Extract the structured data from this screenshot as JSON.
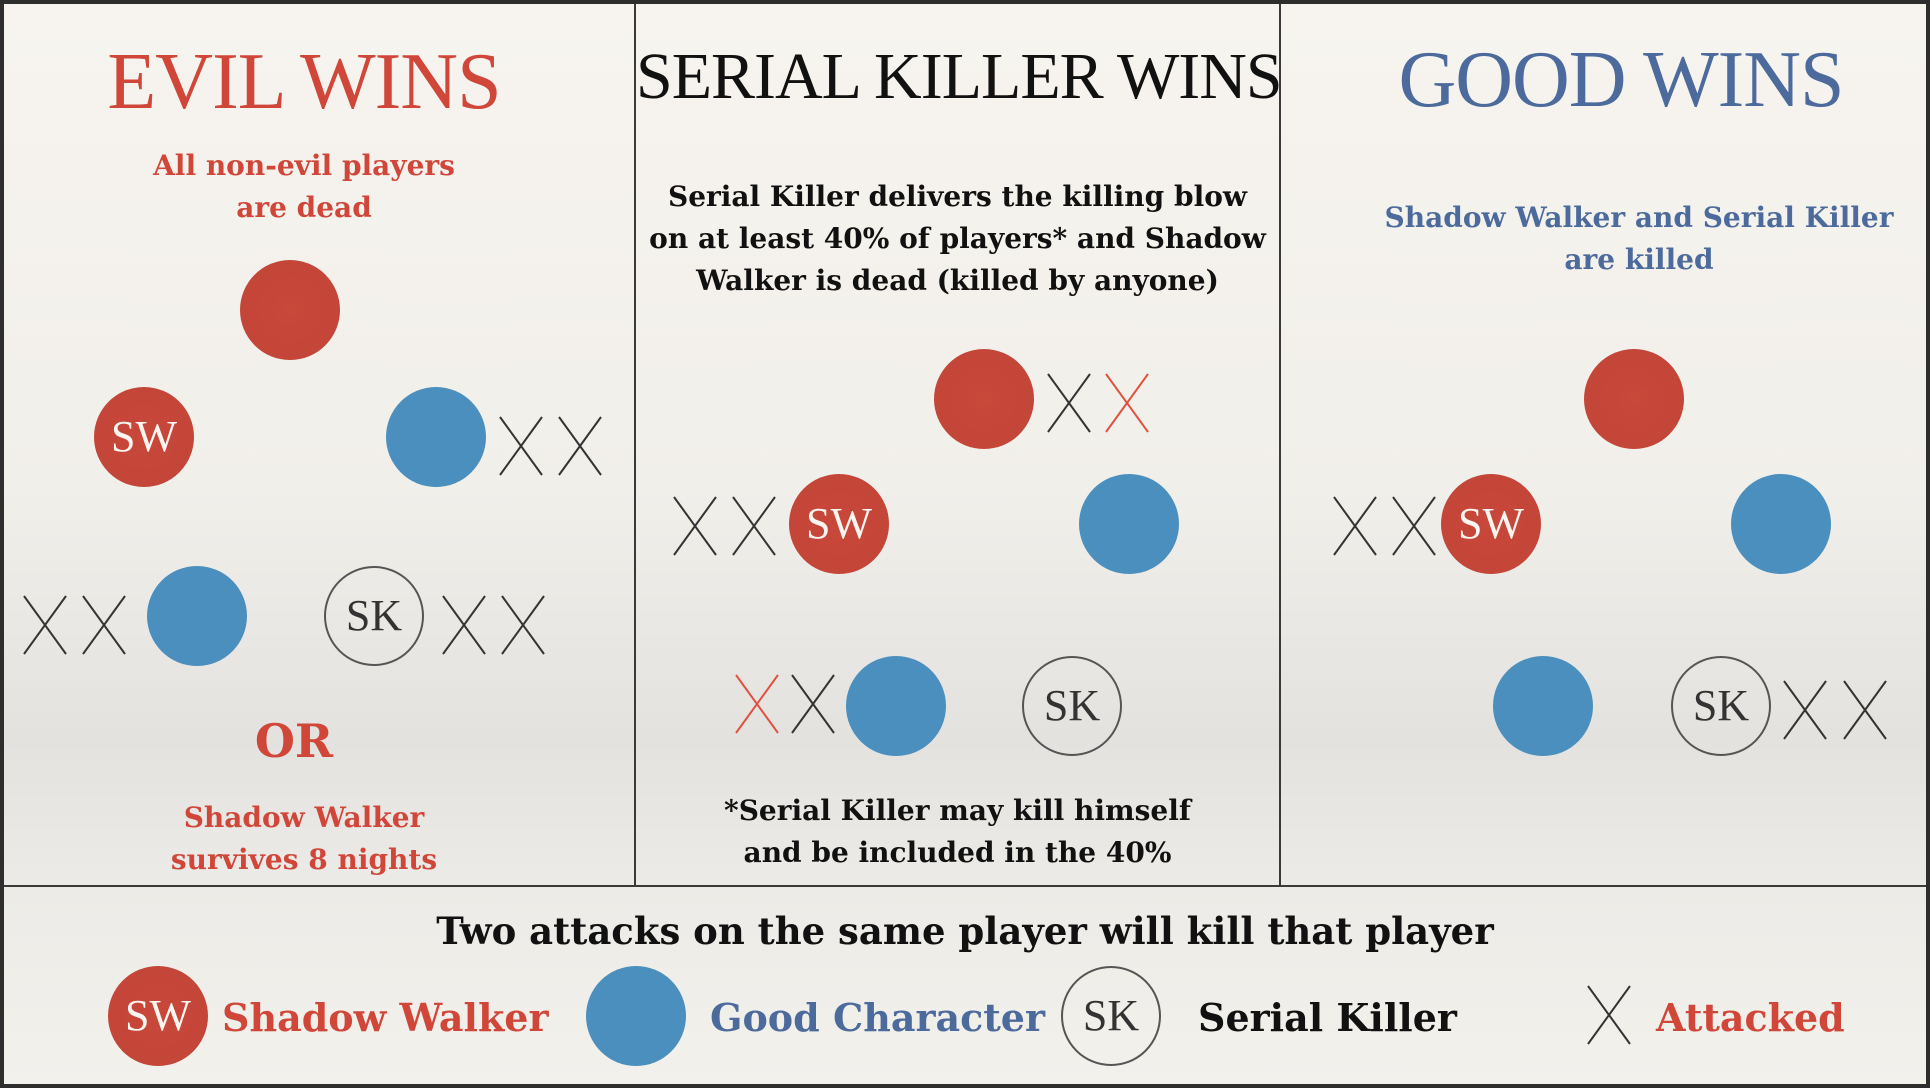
{
  "panels": {
    "evil": {
      "title": "EVIL WINS",
      "desc_line1": "All non-evil players",
      "desc_line2": "are dead",
      "or_label": "OR",
      "alt_line1": "Shadow Walker",
      "alt_line2": "survives 8 nights",
      "color": "#d0473a"
    },
    "sk": {
      "title": "SERIAL KILLER WINS",
      "desc_line1": "Serial Killer delivers the killing blow",
      "desc_line2": "on at least 40% of players* and Shadow",
      "desc_line3": "Walker is dead (killed by anyone)",
      "note_line1": "*Serial Killer may kill himself",
      "note_line2": "and be included in the 40%",
      "color": "#111111"
    },
    "good": {
      "title": "GOOD WINS",
      "desc_line1": "Shadow Walker and Serial Killer",
      "desc_line2": "are killed",
      "color": "#4c6a9c"
    }
  },
  "token_labels": {
    "shadow_walker": "SW",
    "serial_killer": "SK"
  },
  "footer": {
    "rule": "Two attacks on the same player will kill that player"
  },
  "legend": {
    "shadow_walker": "Shadow Walker",
    "good_character": "Good Character",
    "serial_killer": "Serial Killer",
    "attacked": "Attacked"
  },
  "colors": {
    "evil_red": "#c8483a",
    "good_blue": "#4a8fbd",
    "attack_red": "#e0513f",
    "attack_dark": "#333333"
  },
  "icons": {
    "attack_mark": "x-cross"
  }
}
